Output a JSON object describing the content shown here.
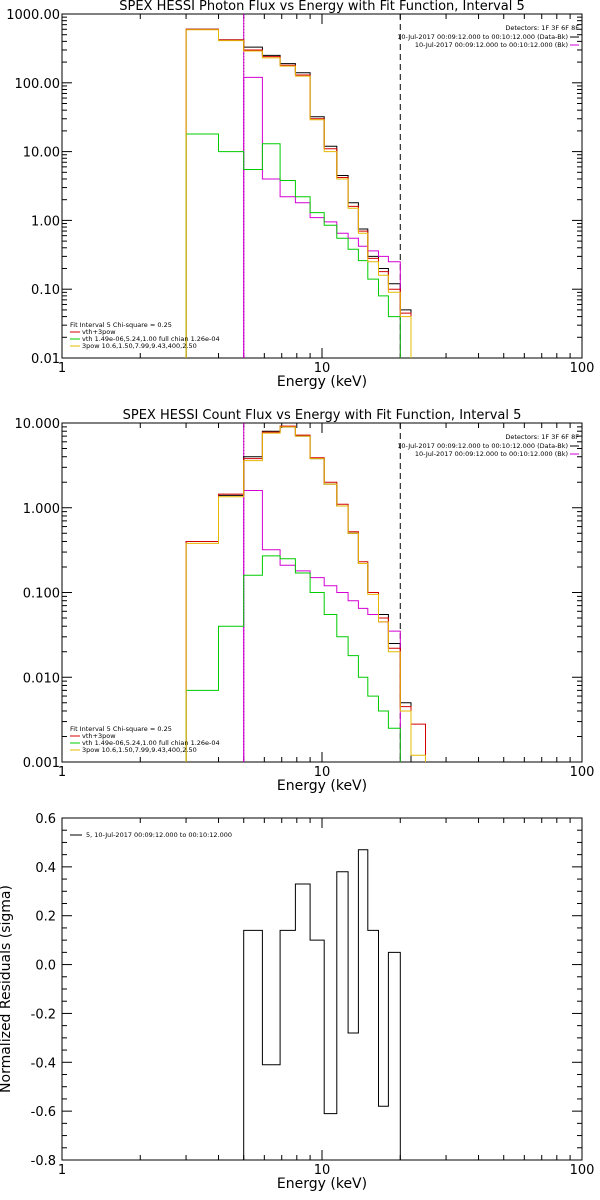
{
  "chart_data": [
    {
      "type": "line",
      "title": "SPEX HESSI Photon Flux vs Energy with Fit Function, Interval 5",
      "xlabel": "Energy (keV)",
      "ylabel": "",
      "xscale": "log",
      "yscale": "log",
      "xlim": [
        1,
        100
      ],
      "ylim": [
        0.01,
        1000
      ],
      "xticks": [
        "1",
        "10",
        "100"
      ],
      "yticks": [
        "0.01",
        "0.10",
        "1.00",
        "10.00",
        "100.00",
        "1000.00"
      ],
      "detectors_label": "Detectors: 1F 3F 6F 8F",
      "time_labels": [
        {
          "text": "10-Jul-2017 00:09:12.000 to 00:10:12.000 (Data-Bk)",
          "color": "#000000"
        },
        {
          "text": "10-Jul-2017 00:09:12.000 to 00:10:12.000 (Bk)",
          "color": "#d400d4"
        }
      ],
      "legend": {
        "header": "Fit Interval 5   Chi-square = 0.25",
        "entries": [
          {
            "text": "vth+3pow",
            "color": "#d40000"
          },
          {
            "text": "vth 1.49e-06,5.24,1.00   full chian 1.26e-04",
            "color": "#00cc00"
          },
          {
            "text": "3pow 10.6,1.50,7.99,9.43,400,2.50",
            "color": "#e6b800"
          }
        ]
      },
      "vlines": [
        {
          "x": 5,
          "style": "dotted",
          "color": "#000000"
        },
        {
          "x": 5,
          "style": "solid",
          "color": "#d400d4"
        },
        {
          "x": 20,
          "style": "dashed",
          "color": "#000000"
        }
      ],
      "bin_edges": [
        3.0,
        4.0,
        5.0,
        5.9,
        6.9,
        7.9,
        9.0,
        10.2,
        11.4,
        12.6,
        13.8,
        15.0,
        16.5,
        18.0,
        20.0,
        22.0
      ],
      "series": [
        {
          "name": "Data-Bk",
          "color": "#000000",
          "values": [
            600,
            420,
            330,
            250,
            190,
            140,
            32,
            12,
            4.5,
            1.8,
            0.75,
            0.3,
            0.2,
            0.12,
            0.05
          ]
        },
        {
          "name": "Bk",
          "color": "#d400d4",
          "values": [
            null,
            null,
            120,
            4.0,
            2.2,
            1.8,
            1.1,
            0.95,
            0.65,
            0.55,
            0.42,
            0.36,
            0.3,
            0.25,
            null
          ]
        },
        {
          "name": "vth+3pow",
          "color": "#d40000",
          "values": [
            600,
            420,
            300,
            240,
            180,
            130,
            30,
            11,
            4.2,
            1.6,
            0.7,
            0.28,
            0.18,
            0.1,
            0.045,
            0.02
          ]
        },
        {
          "name": "vth",
          "color": "#00cc00",
          "values": [
            18,
            10,
            5.5,
            13,
            3.8,
            2.2,
            1.3,
            0.85,
            0.55,
            0.38,
            0.26,
            0.14,
            0.08,
            0.04
          ]
        },
        {
          "name": "3pow",
          "color": "#e6b800",
          "values": [
            590,
            410,
            290,
            230,
            175,
            125,
            29,
            10,
            4.0,
            1.5,
            0.65,
            0.25,
            0.16,
            0.09,
            0.04,
            0.013
          ]
        }
      ]
    },
    {
      "type": "line",
      "title": "SPEX HESSI Count Flux vs Energy with Fit Function, Interval 5",
      "xlabel": "Energy (keV)",
      "ylabel": "",
      "xscale": "log",
      "yscale": "log",
      "xlim": [
        1,
        100
      ],
      "ylim": [
        0.001,
        10
      ],
      "xticks": [
        "1",
        "10",
        "100"
      ],
      "yticks": [
        "0.001",
        "0.010",
        "0.100",
        "1.000",
        "10.000"
      ],
      "detectors_label": "Detectors: 1F 3F 6F 8F",
      "time_labels": [
        {
          "text": "10-Jul-2017 00:09:12.000 to 00:10:12.000 (Data-Bk)",
          "color": "#000000"
        },
        {
          "text": "10-Jul-2017 00:09:12.000 to 00:10:12.000 (Bk)",
          "color": "#d400d4"
        }
      ],
      "legend": {
        "header": "Fit Interval 5   Chi-square = 0.25",
        "entries": [
          {
            "text": "vth+3pow",
            "color": "#d40000"
          },
          {
            "text": "vth 1.49e-06,5.24,1.00   full chian 1.26e-04",
            "color": "#00cc00"
          },
          {
            "text": "3pow 10.6,1.50,7.99,9.43,400,2.50",
            "color": "#e6b800"
          }
        ]
      },
      "vlines": [
        {
          "x": 5,
          "style": "dotted",
          "color": "#000000"
        },
        {
          "x": 5,
          "style": "solid",
          "color": "#d400d4"
        },
        {
          "x": 20,
          "style": "dashed",
          "color": "#000000"
        }
      ],
      "bin_edges": [
        3.0,
        4.0,
        5.0,
        5.9,
        6.9,
        7.9,
        9.0,
        10.2,
        11.4,
        12.6,
        13.8,
        15.0,
        16.5,
        18.0,
        20.0,
        22.0,
        25.0
      ],
      "series": [
        {
          "name": "Data-Bk",
          "color": "#000000",
          "values": [
            0.4,
            1.4,
            4.0,
            8.0,
            9.0,
            7.0,
            3.8,
            1.9,
            1.05,
            0.5,
            0.22,
            0.1,
            0.055,
            0.025,
            0.005
          ]
        },
        {
          "name": "Bk",
          "color": "#d400d4",
          "values": [
            null,
            null,
            1.6,
            0.32,
            0.21,
            0.18,
            0.15,
            0.12,
            0.1,
            0.08,
            0.065,
            0.055,
            0.045,
            0.035,
            null
          ]
        },
        {
          "name": "vth+3pow",
          "color": "#d40000",
          "values": [
            0.4,
            1.45,
            3.8,
            7.8,
            9.2,
            7.2,
            3.9,
            2.0,
            1.1,
            0.52,
            0.23,
            0.1,
            0.05,
            0.022,
            0.0045,
            0.0028,
            0.0012
          ]
        },
        {
          "name": "vth",
          "color": "#00cc00",
          "values": [
            0.007,
            0.04,
            0.16,
            0.27,
            0.25,
            0.17,
            0.1,
            0.055,
            0.03,
            0.018,
            0.01,
            0.006,
            0.004,
            0.0025
          ]
        },
        {
          "name": "3pow",
          "color": "#e6b800",
          "values": [
            0.38,
            1.35,
            3.6,
            7.6,
            9.0,
            7.0,
            3.8,
            1.9,
            1.05,
            0.5,
            0.22,
            0.095,
            0.045,
            0.02,
            0.004,
            0.0012
          ]
        }
      ]
    },
    {
      "type": "line",
      "title": "",
      "xlabel": "Energy (keV)",
      "ylabel": "Normalized Residuals (sigma)",
      "xscale": "log",
      "yscale": "linear",
      "xlim": [
        1,
        100
      ],
      "ylim": [
        -0.8,
        0.6
      ],
      "xticks": [
        "1",
        "10",
        "100"
      ],
      "yticks": [
        "-0.8",
        "-0.6",
        "-0.4",
        "-0.2",
        "0.0",
        "0.2",
        "0.4",
        "0.6"
      ],
      "legend": {
        "entries": [
          {
            "text": "5, 10-Jul-2017 00:09:12.000 to 00:10:12.000",
            "color": "#000000"
          }
        ]
      },
      "bin_edges": [
        5.0,
        5.9,
        6.9,
        7.9,
        9.0,
        10.2,
        11.4,
        12.6,
        13.8,
        15.0,
        16.5,
        18.0,
        20.0
      ],
      "series": [
        {
          "name": "",
          "color": "#000000",
          "values": [
            0.14,
            -0.41,
            0.14,
            0.33,
            0.1,
            -0.61,
            0.38,
            -0.28,
            0.47,
            0.14,
            -0.58,
            0.05
          ]
        }
      ]
    }
  ]
}
